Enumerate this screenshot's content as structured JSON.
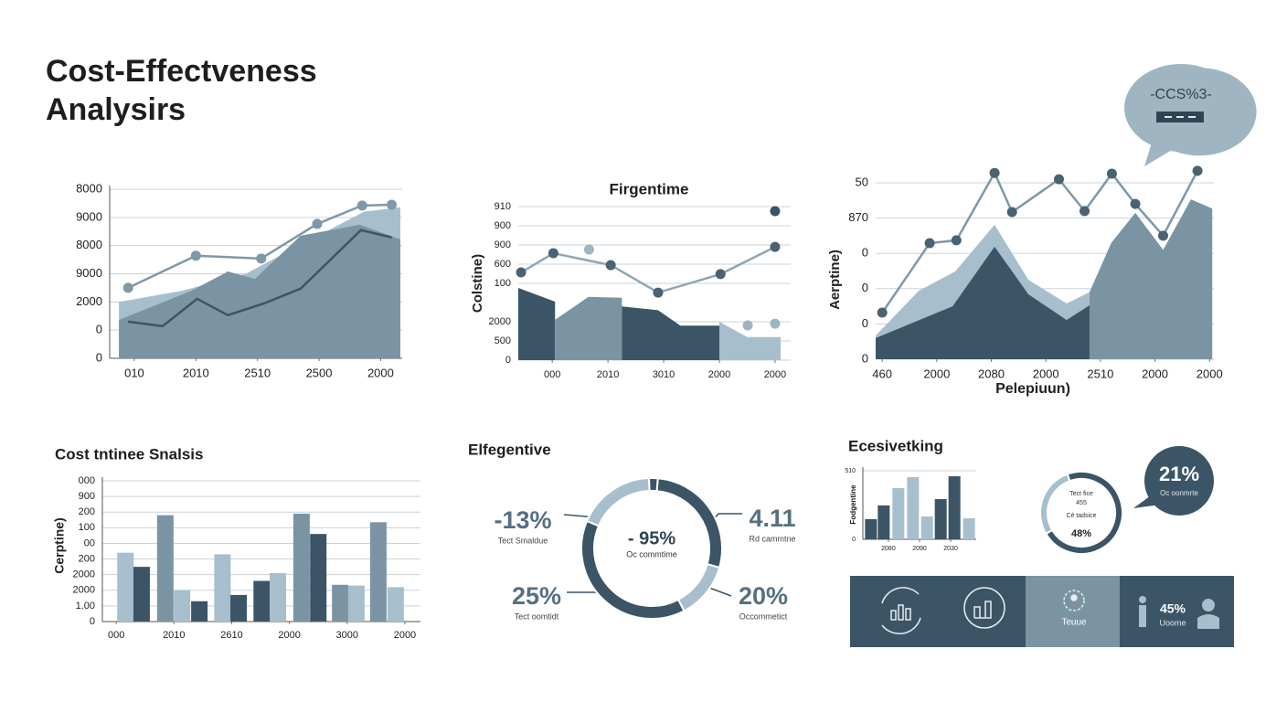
{
  "title_lines": [
    "Cost-Effectveness",
    "Analysirs"
  ],
  "bubble_top": "-CCS%3-",
  "bubble_stat": {
    "value": "21%",
    "label": "Oc oonmrte"
  },
  "tiles": {
    "tile_label": "Teuue",
    "stat": "45%",
    "stat_label": "Uoome"
  },
  "chart_data": [
    {
      "type": "combo",
      "grid": true,
      "axis_line": true,
      "xlim": [
        -0.4,
        4.35
      ],
      "ylim": [
        0,
        6
      ],
      "xticks": [
        {
          "value": 0,
          "label": "010"
        },
        {
          "value": 1,
          "label": "2010"
        },
        {
          "value": 2,
          "label": "2510"
        },
        {
          "value": 3,
          "label": "2500"
        },
        {
          "value": 4,
          "label": "2000"
        }
      ],
      "yticks": [
        {
          "value": 6,
          "label": "8000"
        },
        {
          "value": 5,
          "label": "9000"
        },
        {
          "value": 4,
          "label": "8000"
        },
        {
          "value": 3,
          "label": "9000"
        },
        {
          "value": 2,
          "label": "2000"
        },
        {
          "value": 1,
          "label": "0"
        },
        {
          "value": 0,
          "label": "0"
        }
      ],
      "series": [
        {
          "type": "area",
          "color": "#a7bfcd",
          "x": [
            -0.25,
            0.78,
            1.81,
            2.85,
            3.73,
            4.32
          ],
          "values": [
            2.0,
            2.4,
            3.0,
            4.2,
            5.2,
            5.36
          ]
        },
        {
          "type": "area",
          "color": "#7b94a3",
          "x": [
            -0.25,
            0.93,
            1.52,
            1.96,
            2.7,
            3.66,
            4.32
          ],
          "values": [
            1.36,
            2.4,
            3.08,
            2.82,
            4.35,
            4.74,
            4.22
          ]
        },
        {
          "type": "line",
          "color": "#3b5566",
          "x": [
            -0.1,
            0.46,
            1.02,
            1.52,
            2.11,
            2.7,
            3.68,
            4.18
          ],
          "values": [
            1.3,
            1.14,
            2.11,
            1.53,
            1.95,
            2.47,
            4.55,
            4.29
          ]
        },
        {
          "type": "line",
          "color": "#7f98a7",
          "markers": true,
          "marker_color": "#7f98a7",
          "x": [
            -0.1,
            1.0,
            2.06,
            2.97,
            3.7,
            4.18
          ],
          "values": [
            2.5,
            3.64,
            3.54,
            4.77,
            5.42,
            5.45
          ]
        }
      ]
    },
    {
      "type": "combo",
      "title": "Firgentime",
      "ylabel": "Colstine)",
      "grid": true,
      "xlim": [
        -0.61,
        4.28
      ],
      "ylim": [
        0,
        8
      ],
      "xticks": [
        {
          "value": 0,
          "label": "000"
        },
        {
          "value": 1,
          "label": "2010"
        },
        {
          "value": 2,
          "label": "3010"
        },
        {
          "value": 3,
          "label": "2000"
        },
        {
          "value": 4,
          "label": "2000"
        }
      ],
      "yticks": [
        {
          "value": 8,
          "label": "910"
        },
        {
          "value": 7,
          "label": "900"
        },
        {
          "value": 6,
          "label": "900"
        },
        {
          "value": 5,
          "label": "600"
        },
        {
          "value": 4,
          "label": "100"
        },
        {
          "value": 2,
          "label": "2000"
        },
        {
          "value": 1,
          "label": "500"
        },
        0
      ],
      "series": [
        {
          "type": "area",
          "color": "#3b5566",
          "x": [
            -0.61,
            0.05
          ],
          "values": [
            3.76,
            3.05
          ]
        },
        {
          "type": "area",
          "color": "#7b94a3",
          "x": [
            0.05,
            0.65,
            1.25
          ],
          "values": [
            2.1,
            3.3,
            3.25
          ]
        },
        {
          "type": "area",
          "color": "#3b5566",
          "x": [
            1.25,
            1.9,
            2.3,
            3.0
          ],
          "values": [
            2.8,
            2.6,
            1.8,
            1.8
          ]
        },
        {
          "type": "area",
          "color": "#a7bfcd",
          "x": [
            3.0,
            3.5,
            4.1
          ],
          "values": [
            2.0,
            1.2,
            1.2
          ]
        },
        {
          "type": "line",
          "color": "#8fa6b4",
          "markers": true,
          "marker_color": "#4a6272",
          "x": [
            -0.56,
            0.02,
            1.05,
            1.9,
            3.02,
            4.0
          ],
          "values": [
            4.57,
            5.57,
            4.95,
            3.52,
            4.48,
            5.9
          ]
        },
        {
          "type": "scatter",
          "color": "#9fb4c1",
          "x": [
            0.66,
            3.51,
            4.0
          ],
          "values": [
            5.76,
            1.81,
            1.9
          ]
        },
        {
          "type": "scatter",
          "color": "#3b5566",
          "x": [
            4.0
          ],
          "values": [
            7.76
          ]
        }
      ]
    },
    {
      "type": "combo",
      "xlabel": "Pelepiuun)",
      "ylabel": "Aerptine)",
      "grid": true,
      "xlim": [
        -0.12,
        6.08
      ],
      "ylim": [
        0,
        5
      ],
      "xticks": [
        {
          "value": 0,
          "label": "460"
        },
        {
          "value": 1,
          "label": "2000"
        },
        {
          "value": 2,
          "label": "2080"
        },
        {
          "value": 3,
          "label": "2000"
        },
        {
          "value": 4,
          "label": "2510"
        },
        {
          "value": 5,
          "label": "2000"
        },
        {
          "value": 6,
          "label": "2000"
        }
      ],
      "yticks": [
        {
          "value": 5,
          "label": "50"
        },
        {
          "value": 4,
          "label": "870"
        },
        {
          "value": 3,
          "label": "0"
        },
        {
          "value": 2,
          "label": "0"
        },
        {
          "value": 1,
          "label": "0"
        },
        0
      ],
      "series": [
        {
          "type": "area",
          "color": "#a7bfcd",
          "x": [
            -0.12,
            0.67,
            1.34,
            2.06,
            2.68,
            3.38,
            3.8
          ],
          "values": [
            0.67,
            1.94,
            2.49,
            3.81,
            2.25,
            1.58,
            1.9
          ]
        },
        {
          "type": "area",
          "color": "#7b94a3",
          "x": [
            3.8,
            4.2,
            4.64,
            5.15,
            5.66,
            6.05
          ],
          "values": [
            1.9,
            3.3,
            4.15,
            3.1,
            4.53,
            4.27
          ]
        },
        {
          "type": "area",
          "color": "#3b5566",
          "x": [
            -0.12,
            1.29,
            2.06,
            2.68,
            3.38,
            3.8
          ],
          "values": [
            0.6,
            1.5,
            3.19,
            1.84,
            1.11,
            1.53
          ]
        },
        {
          "type": "line",
          "color": "#7f98a7",
          "markers": true,
          "marker_color": "#4a6272",
          "x": [
            0,
            0.87,
            1.36,
            2.06,
            2.38,
            3.24,
            3.71,
            4.21,
            4.64,
            5.15,
            5.78
          ],
          "values": [
            1.32,
            3.29,
            3.37,
            5.28,
            4.17,
            5.1,
            4.2,
            5.26,
            4.4,
            3.5,
            5.34
          ]
        }
      ]
    },
    {
      "type": "bar",
      "title": "Cost tntinee Snalsis",
      "ylabel": "Cerptine)",
      "grid": true,
      "axis_line": true,
      "xlim": [
        -0.24,
        5.27
      ],
      "ylim": [
        0,
        9
      ],
      "xticks": [
        {
          "value": 0,
          "label": "000"
        },
        {
          "value": 1,
          "label": "2010"
        },
        {
          "value": 2,
          "label": "2610"
        },
        {
          "value": 3,
          "label": "2000"
        },
        {
          "value": 4,
          "label": "3000"
        },
        {
          "value": 5,
          "label": "2000"
        }
      ],
      "yticks": [
        {
          "value": 9,
          "label": "000"
        },
        {
          "value": 8,
          "label": "900"
        },
        {
          "value": 7,
          "label": "200"
        },
        {
          "value": 6,
          "label": "100"
        },
        {
          "value": 5,
          "label": "00"
        },
        {
          "value": 4,
          "label": "200"
        },
        {
          "value": 3,
          "label": "2000"
        },
        {
          "value": 2,
          "label": "2000"
        },
        {
          "value": 1,
          "label": "1.00"
        },
        0
      ],
      "series": [
        {
          "type": "bar",
          "x": [
            0.16,
            0.44,
            0.85,
            1.14,
            1.44,
            1.84,
            2.12,
            2.52,
            2.8,
            3.21,
            3.5,
            3.88,
            4.16,
            4.54,
            4.84
          ],
          "values": [
            4.4,
            3.5,
            6.8,
            2.0,
            1.3,
            4.3,
            1.7,
            2.6,
            3.1,
            6.9,
            5.6,
            2.35,
            2.3,
            6.35,
            2.2
          ],
          "colors": [
            "#a7bfcd",
            "#3b5566",
            "#7b94a3",
            "#a7bfcd",
            "#3b5566",
            "#a7bfcd",
            "#3b5566",
            "#3b5566",
            "#a7bfcd",
            "#7b94a3",
            "#3b5566",
            "#7b94a3",
            "#a7bfcd",
            "#7b94a3",
            "#a7bfcd"
          ]
        }
      ]
    },
    {
      "type": "pie",
      "title": "Elfegentive",
      "values": [
        28,
        13,
        39,
        18,
        2
      ],
      "colors": [
        "#3b5566",
        "#a7bfcd",
        "#3b5566",
        "#a7bfcd",
        "#3b5566"
      ],
      "center_lines": [
        "- 95%",
        "Oc commtime"
      ],
      "annotations": [
        {
          "text": "-13%",
          "caption": "Tect Smaldue"
        },
        {
          "text": "4.11",
          "caption": "Rd cammtne"
        },
        {
          "text": "25%",
          "caption": "Tect oomtidt"
        },
        {
          "text": "20%",
          "caption": "Occommetict"
        }
      ]
    },
    {
      "type": "bar",
      "title": "Ecesivetking",
      "ylabel": "Fodgentine",
      "grid": true,
      "axis_line": true,
      "xlim": [
        -0.82,
        2.82
      ],
      "ylim": [
        0,
        510
      ],
      "xticks": [
        {
          "value": 0,
          "label": "2080"
        },
        {
          "value": 1,
          "label": "2090"
        },
        {
          "value": 2,
          "label": "2030"
        }
      ],
      "yticks": [
        510,
        0
      ],
      "series": [
        {
          "type": "bar",
          "x": [
            -0.56,
            -0.15,
            0.32,
            0.79,
            1.24,
            1.68,
            2.12,
            2.59
          ],
          "values": [
            150,
            252,
            381,
            462,
            170,
            299,
            469,
            156
          ],
          "colors": [
            "#3b5566",
            "#3b5566",
            "#a7bfcd",
            "#a7bfcd",
            "#a7bfcd",
            "#3b5566",
            "#3b5566",
            "#a7bfcd"
          ]
        }
      ]
    },
    {
      "type": "pie",
      "values": [
        72,
        28
      ],
      "colors": [
        "#3b5566",
        "#a7bfcd"
      ],
      "center_lines": [
        "Tect fice",
        "455",
        "Cé tadsice",
        "48%"
      ]
    }
  ]
}
